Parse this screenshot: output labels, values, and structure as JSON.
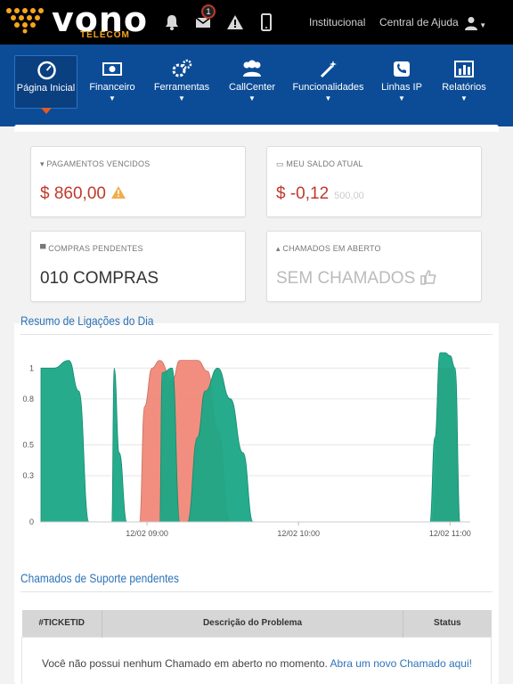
{
  "topbar": {
    "logo_text": "vono",
    "logo_sub": "TELECOM",
    "icons": [
      "bell-icon",
      "envelope-icon",
      "warning-icon",
      "mobile-icon"
    ],
    "mail_badge": "1",
    "links": [
      "Institucional",
      "Central de Ajuda"
    ],
    "user_icon": "user-icon"
  },
  "nav": {
    "items": [
      {
        "label": "Página Inicial",
        "icon": "dashboard-icon",
        "active": true
      },
      {
        "label": "Financeiro",
        "icon": "money-icon"
      },
      {
        "label": "Ferramentas",
        "icon": "cogs-icon"
      },
      {
        "label": "CallCenter",
        "icon": "users-icon"
      },
      {
        "label": "Funcionalidades",
        "icon": "magic-icon"
      },
      {
        "label": "Linhas IP",
        "icon": "phone-icon"
      },
      {
        "label": "Relatórios",
        "icon": "bar-chart-icon"
      }
    ]
  },
  "stats": {
    "overdue": {
      "label": "PAGAMENTOS VENCIDOS",
      "value": "$ 860,00"
    },
    "balance": {
      "label": "MEU SALDO ATUAL",
      "value": "$ -0,12",
      "sub": "500,00"
    },
    "purchases": {
      "label": "COMPRAS PENDENTES",
      "value": "010 COMPRAS"
    },
    "tickets": {
      "label": "CHAMADOS EM ABERTO",
      "value": "SEM CHAMADOS"
    }
  },
  "calls_section": {
    "title": "Resumo de Ligações do Dia"
  },
  "chart_data": {
    "type": "area",
    "title": "",
    "xlabel": "",
    "ylabel": "",
    "ylim": [
      0,
      1.1
    ],
    "y_ticks": [
      "0",
      "0.3",
      "0.5",
      "0.8",
      "1"
    ],
    "x_ticks": [
      "12/02 09:00",
      "12/02 10:00",
      "12/02 11:00"
    ],
    "x_tick_minutes": [
      0,
      60,
      120
    ],
    "x_range_minutes": [
      -42,
      128
    ],
    "colors": [
      "#f08878",
      "#1aa886"
    ],
    "series": [
      {
        "x": [
          -42,
          -30,
          -25,
          -21,
          -17,
          -14,
          -13,
          -11,
          -8,
          -6,
          -3,
          -1,
          2,
          5,
          10,
          13,
          16,
          20,
          24,
          28,
          33,
          38,
          42,
          45,
          48,
          52,
          55,
          62,
          70,
          90,
          100,
          108,
          112,
          113,
          116,
          118,
          121,
          124
        ],
        "y": [
          0,
          0,
          0,
          0,
          0,
          0,
          0,
          0,
          0,
          0,
          0,
          0.75,
          1,
          1.05,
          0.92,
          1.05,
          1.05,
          1.05,
          0.98,
          0.6,
          0,
          0,
          0,
          0,
          0,
          0,
          0,
          0,
          0,
          0,
          0,
          0,
          0,
          0,
          1,
          1,
          1,
          0
        ]
      },
      {
        "x": [
          -42,
          -37,
          -31,
          -27,
          -23,
          -20,
          -17,
          -14,
          -13,
          -11,
          -8,
          -6,
          -3,
          0,
          5,
          6,
          10,
          13,
          16,
          20,
          23,
          28,
          33,
          38,
          42,
          45,
          50,
          55,
          62,
          70,
          100,
          108,
          112,
          114,
          116,
          118,
          120,
          122,
          124
        ],
        "y": [
          1,
          1,
          1.05,
          0.85,
          0,
          0,
          0,
          0,
          1,
          0.45,
          0,
          0,
          0,
          0,
          0,
          0.97,
          1,
          0,
          0,
          0.55,
          0.85,
          1,
          0.8,
          0.45,
          0,
          0,
          0,
          0,
          0,
          0,
          0,
          0,
          0,
          0.55,
          1.1,
          1.1,
          1.08,
          1,
          0
        ]
      }
    ]
  },
  "support_section": {
    "title": "Chamados de Suporte pendentes",
    "columns": [
      "#TICKETID",
      "Descrição do Problema",
      "Status"
    ],
    "empty_text": "Você não possui nenhum Chamado em aberto no momento.",
    "empty_link": "Abra um novo Chamado aqui!"
  }
}
